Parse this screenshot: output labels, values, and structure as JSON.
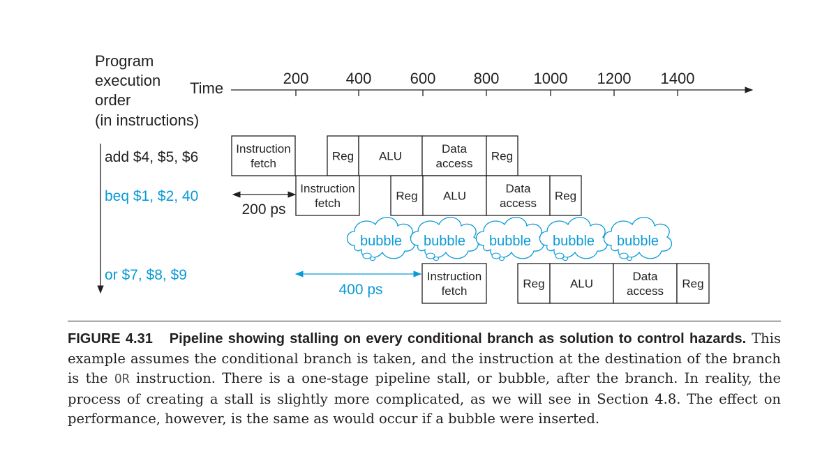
{
  "axis": {
    "order_label_lines": [
      "Program",
      "execution",
      "order",
      "(in instructions)"
    ],
    "time_label": "Time",
    "ticks": [
      "200",
      "400",
      "600",
      "800",
      "1000",
      "1200",
      "1400"
    ]
  },
  "colors": {
    "text": "#231f20",
    "accent": "#0a9ad6",
    "bubble": "#0a9ad6"
  },
  "instructions": [
    {
      "label": "add $4, $5, $6",
      "color": "#231f20",
      "stages": [
        {
          "lines": [
            "Instruction",
            "fetch"
          ]
        },
        {
          "lines": [
            "Reg"
          ]
        },
        {
          "lines": [
            "ALU"
          ]
        },
        {
          "lines": [
            "Data",
            "access"
          ]
        },
        {
          "lines": [
            "Reg"
          ]
        }
      ]
    },
    {
      "label": "beq $1, $2, 40",
      "color": "#0a9ad6",
      "stages": [
        {
          "lines": [
            "Instruction",
            "fetch"
          ]
        },
        {
          "lines": [
            "Reg"
          ]
        },
        {
          "lines": [
            "ALU"
          ]
        },
        {
          "lines": [
            "Data",
            "access"
          ]
        },
        {
          "lines": [
            "Reg"
          ]
        }
      ]
    },
    {
      "label": "or $7, $8, $9",
      "color": "#0a9ad6",
      "stages": [
        {
          "lines": [
            "Instruction",
            "fetch"
          ]
        },
        {
          "lines": [
            "Reg"
          ]
        },
        {
          "lines": [
            "ALU"
          ]
        },
        {
          "lines": [
            "Data",
            "access"
          ]
        },
        {
          "lines": [
            "Reg"
          ]
        }
      ]
    }
  ],
  "bubbles": [
    "bubble",
    "bubble",
    "bubble",
    "bubble",
    "bubble"
  ],
  "intervals": {
    "first": "200 ps",
    "second": "400 ps"
  },
  "caption": {
    "figure_number": "FIGURE 4.31",
    "title": "Pipeline showing stalling on every conditional branch as solution to control hazards.",
    "text_1": " This example assumes the conditional branch is taken, and the instruction at the destination of the branch is the ",
    "code": "OR",
    "text_2": " instruction. There is a one-stage pipeline stall, or bubble, after the branch. In reality, the process of creating a stall is slightly more complicated, as we will see in Section 4.8. The effect on performance, however, is the same as would occur if a bubble were inserted."
  }
}
